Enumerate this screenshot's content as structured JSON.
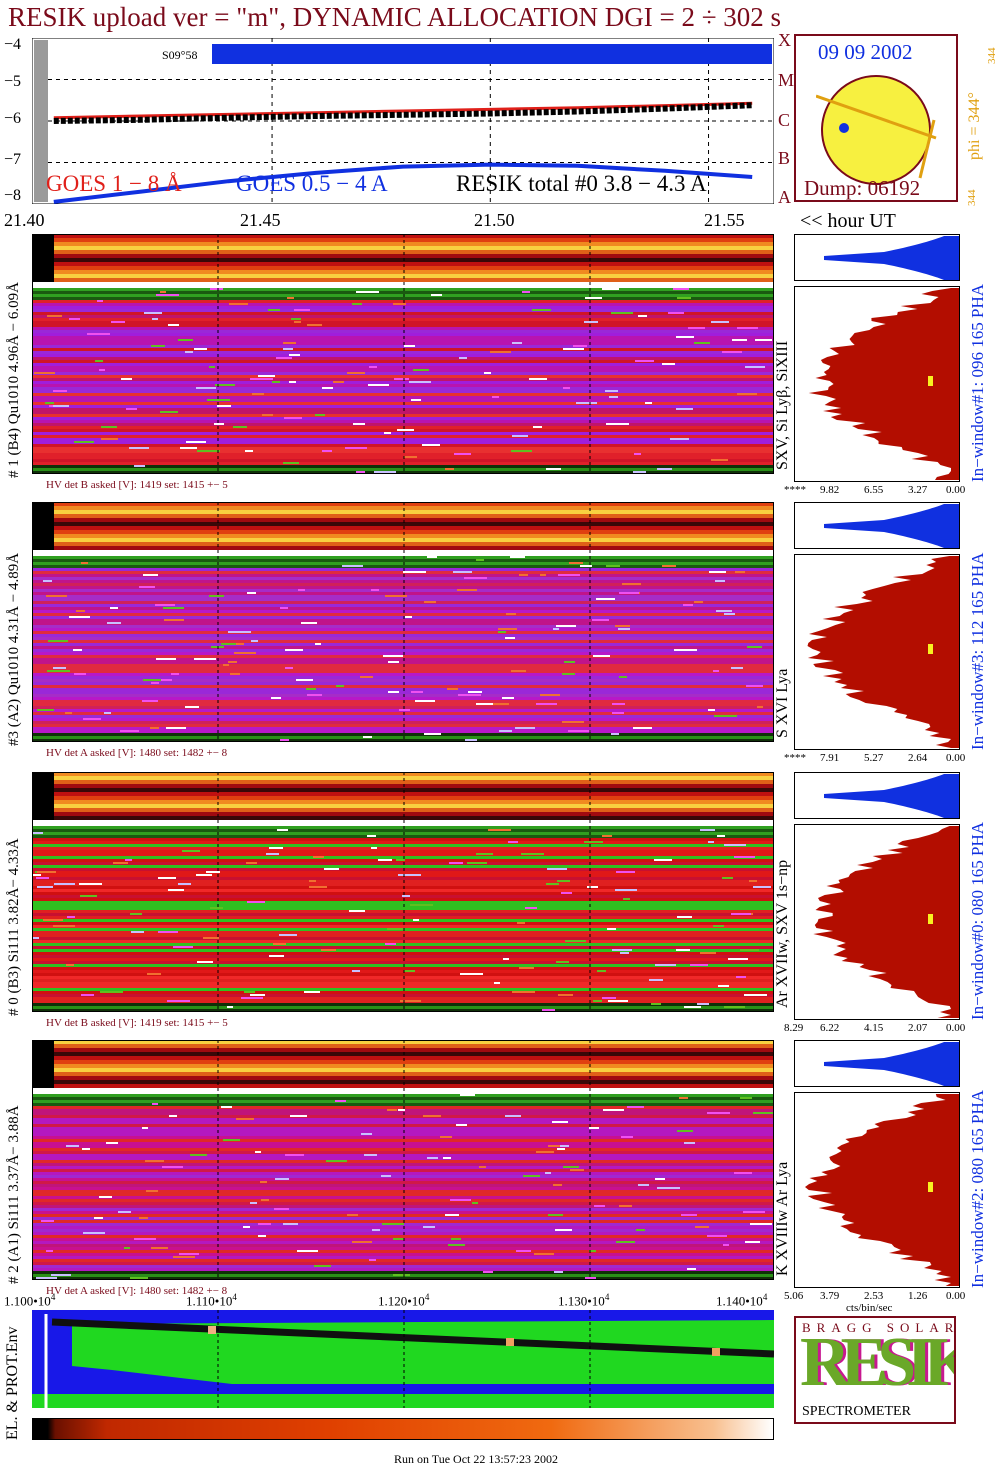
{
  "header": {
    "title": "RESIK upload ver = \"m\", DYNAMIC ALLOCATION  DGI =   2 ÷ 302 s"
  },
  "goes_panel": {
    "y_ticks": [
      "−4",
      "−5",
      "−6",
      "−7",
      "−8"
    ],
    "class_labels": [
      "X",
      "M",
      "C",
      "B",
      "A"
    ],
    "marker_label": "S09°58",
    "legend": {
      "goes_long": "GOES 1 − 8 Å",
      "goes_short": "GOES 0.5 − 4 A",
      "resik": "RESIK total #0  3.8 − 4.3 A"
    },
    "time_ticks": [
      "21.40",
      "21.45",
      "21.50",
      "21.55"
    ],
    "time_unit": "<< hour UT"
  },
  "sun_box": {
    "date": "09 09 2002",
    "phi": "phi = 344°",
    "phi_top": "344",
    "phi_bottom": "344",
    "dump": "Dump: 06192"
  },
  "detectors": [
    {
      "label": "# 1 (B4) Qu1010 4.96Å − 6.09Å",
      "lines": "SXV, Si Lyβ, SiXIII",
      "hv": "HV det B asked [V]:  1419 set:  1415  +−   5",
      "pha_label": "In−window#1:  096 165 PHA",
      "pha_ticks": [
        "****",
        "9.82",
        "6.55",
        "3.27",
        "0.00"
      ]
    },
    {
      "label": "#3 (A2) Qu1010  4.31Å − 4.89Å",
      "lines": "S XVI Lya",
      "hv": "HV det A asked [V]:  1480 set:  1482  +−   8",
      "pha_label": "In−window#3:  112 165 PHA",
      "pha_ticks": [
        "****",
        "7.91",
        "5.27",
        "2.64",
        "0.00"
      ]
    },
    {
      "label": "# 0 (B3) Si111  3.82Å− 4.33Å",
      "lines": "Ar XVIIw,  SXV 1s−np",
      "hv": "HV det B asked [V]:  1419 set:  1415  +−   5",
      "pha_label": "In−window#0:  080 165 PHA",
      "pha_ticks": [
        "8.29",
        "6.22",
        "4.15",
        "2.07",
        "0.00"
      ]
    },
    {
      "label": "# 2 (A1) Si111  3.37Å− 3.88Å",
      "lines": "K XVIIIw  Ar Lya",
      "hv": "HV det A asked [V]:  1480 set:  1482  +−   8",
      "pha_label": "In−window#2:  080 165 PHA",
      "pha_ticks": [
        "5.06",
        "3.79",
        "2.53",
        "1.26",
        "0.00"
      ],
      "pha_unit": "cts/bin/sec"
    }
  ],
  "env_panel": {
    "label": "EL. & PROT.Env",
    "x_ticks": [
      "1.100•10",
      "1.110•10",
      "1.120•10",
      "1.130•10",
      "1.140•10"
    ],
    "x_exp": "4"
  },
  "logo": {
    "letters": "RESIK",
    "small": "BRAGG  SOLAR",
    "bottom": "SPECTROMETER"
  },
  "footer": {
    "run": "Run on Tue Oct 22 13:57:23 2002"
  },
  "colors": {
    "title": "#7a0a1a",
    "goes_long": "#e0201a",
    "goes_short": "#1030e0",
    "pha_fill": "#b30d00",
    "pha_top": "#1030e0",
    "sun": "#f7f040"
  },
  "chart_data": {
    "type": "line",
    "title": "RESIK upload ver = \"m\", DYNAMIC ALLOCATION  DGI =   2 ÷ 302 s",
    "xlabel": "<< hour UT",
    "ylabel": "",
    "xlim": [
      21.395,
      21.565
    ],
    "ylim": [
      -8,
      -4
    ],
    "x": [
      21.4,
      21.42,
      21.44,
      21.46,
      21.48,
      21.5,
      21.52,
      21.54,
      21.56
    ],
    "series": [
      {
        "name": "GOES 1 − 8 Å",
        "values": [
          -5.92,
          -5.88,
          -5.84,
          -5.8,
          -5.76,
          -5.72,
          -5.68,
          -5.63,
          -5.57
        ]
      },
      {
        "name": "GOES 0.5 − 4 A",
        "values": [
          -7.95,
          -7.7,
          -7.45,
          -7.25,
          -7.1,
          -7.05,
          -7.08,
          -7.2,
          -7.35
        ]
      },
      {
        "name": "RESIK total #0  3.8 − 4.3 A",
        "values": [
          -6.0,
          -5.97,
          -5.92,
          -5.88,
          -5.85,
          -5.82,
          -5.77,
          -5.7,
          -5.62
        ]
      }
    ]
  }
}
